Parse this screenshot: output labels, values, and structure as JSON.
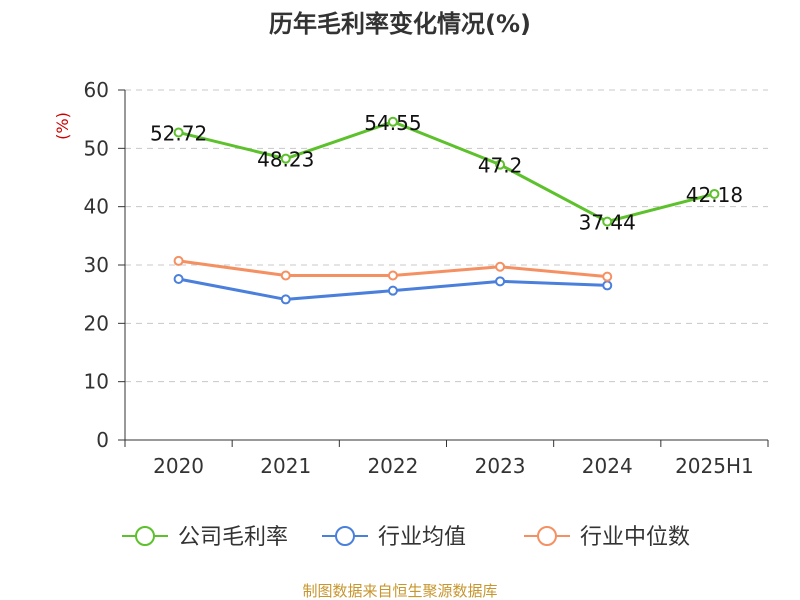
{
  "chart_data": {
    "type": "line",
    "title": "历年毛利率变化情况(%)",
    "unit_label": "(%)",
    "categories": [
      "2020",
      "2021",
      "2022",
      "2023",
      "2024",
      "2025H1"
    ],
    "yticks": [
      "0",
      "10",
      "20",
      "30",
      "40",
      "50",
      "60"
    ],
    "ylim": [
      0,
      60
    ],
    "grid": true,
    "legend_position": "bottom",
    "series": [
      {
        "name": "公司毛利率",
        "color": "#5cc12b",
        "values": [
          52.72,
          48.23,
          54.55,
          47.2,
          37.44,
          42.18
        ],
        "labels": [
          "52.72",
          "48.23",
          "54.55",
          "47.2",
          "37.44",
          "42.18"
        ]
      },
      {
        "name": "行业均值",
        "color": "#4a7fdc",
        "values": [
          27.6,
          24.1,
          25.6,
          27.2,
          26.5,
          null
        ]
      },
      {
        "name": "行业中位数",
        "color": "#f59062",
        "values": [
          30.7,
          28.2,
          28.2,
          29.7,
          28.0,
          null
        ]
      }
    ]
  },
  "source": "制图数据来自恒生聚源数据库"
}
